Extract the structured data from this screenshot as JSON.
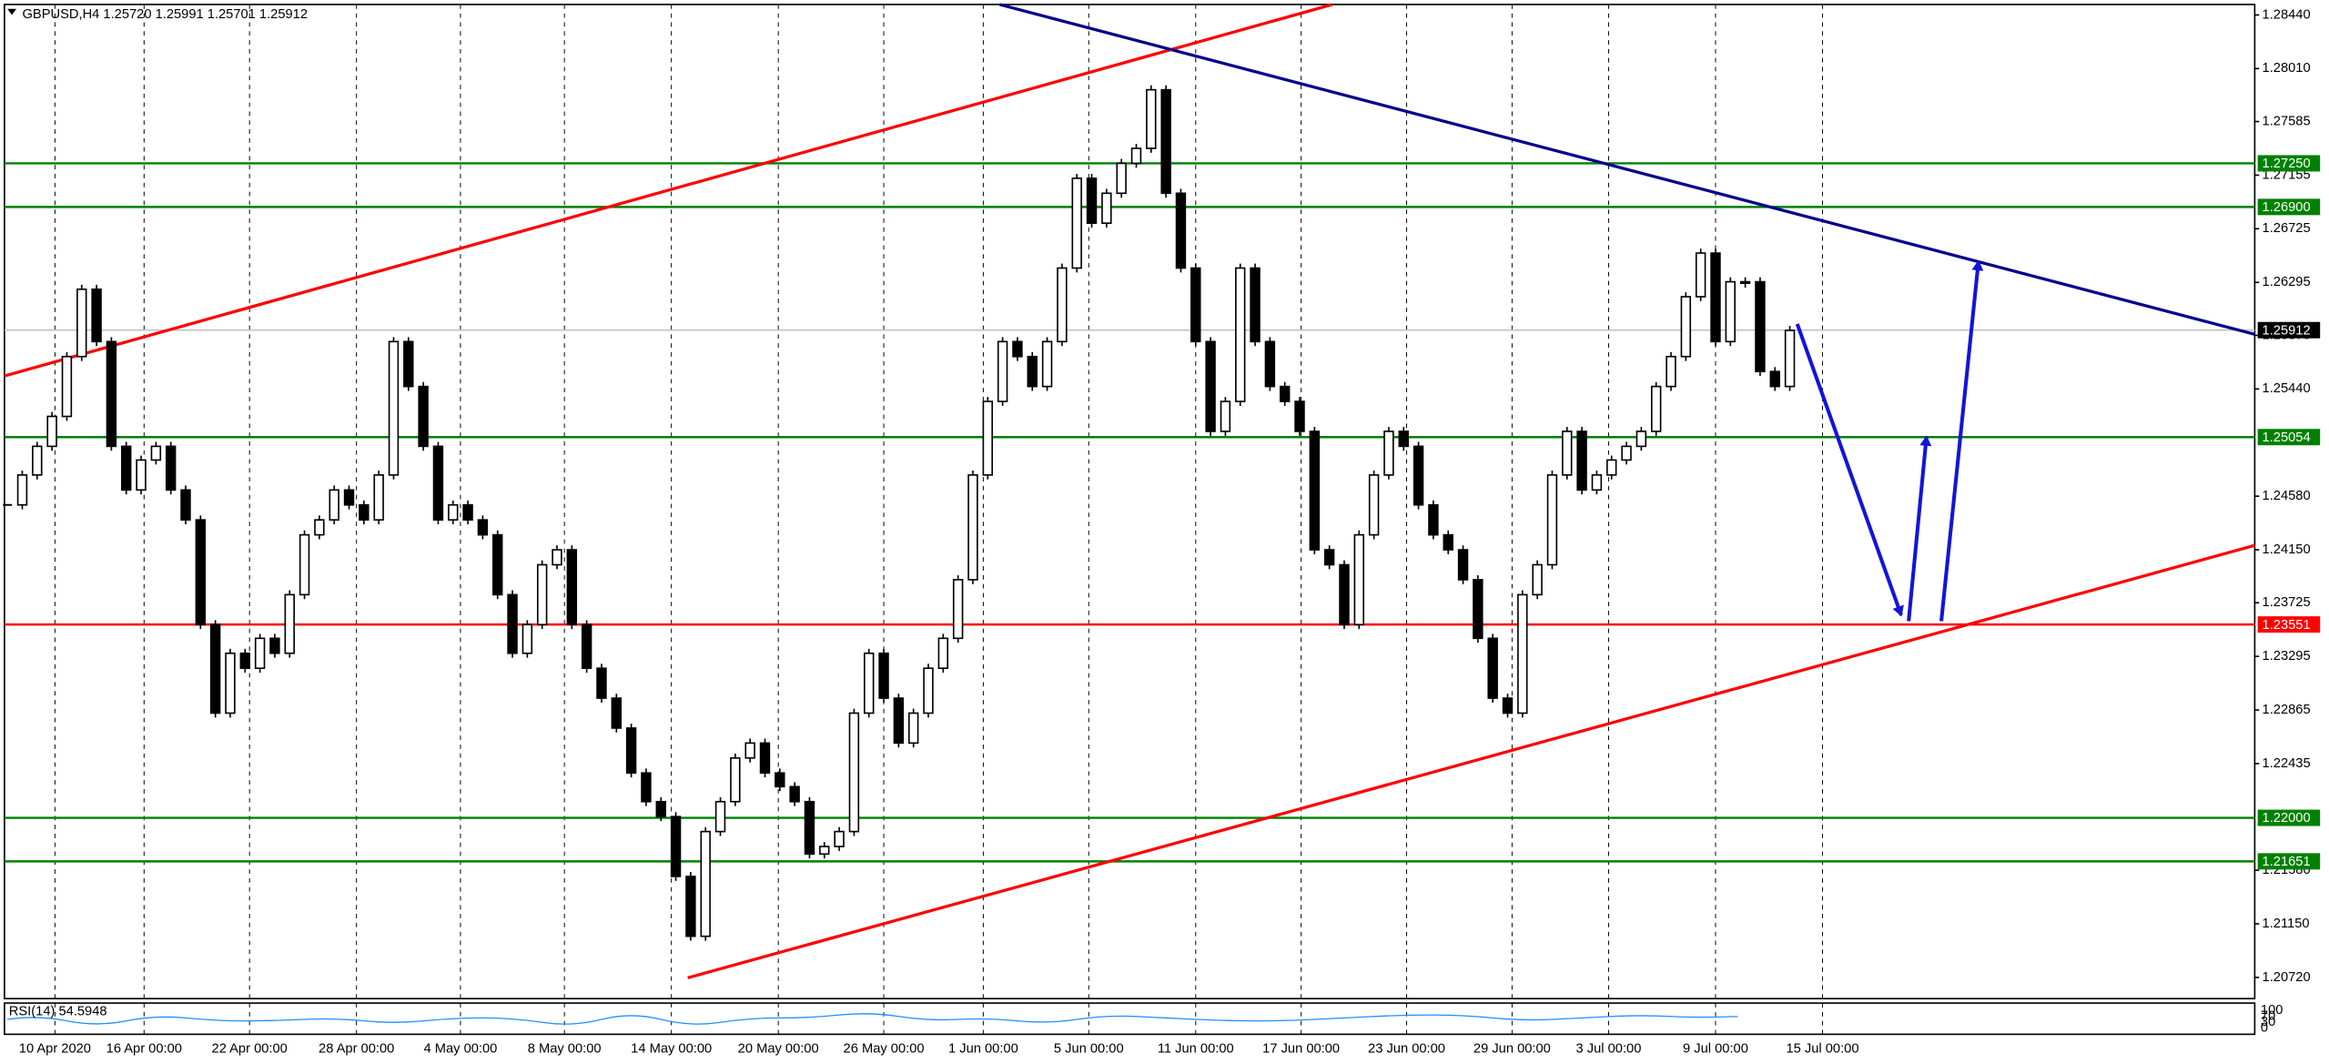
{
  "chart_data": {
    "type": "candlestick",
    "title": "GBPUSD,H4  1.25720 1.25991 1.25701 1.25912",
    "values": [
      1.2451,
      1.2475,
      1.2498,
      1.2522,
      1.257,
      1.2624,
      1.2582,
      1.2498,
      1.2463,
      1.2487,
      1.2498,
      1.2463,
      1.2439,
      1.2355,
      1.2284,
      1.2332,
      1.232,
      1.2344,
      1.2332,
      1.2379,
      1.2427,
      1.2439,
      1.2463,
      1.2451,
      1.2439,
      1.2475,
      1.2582,
      1.2546,
      1.2498,
      1.2439,
      1.2451,
      1.2439,
      1.2427,
      1.2379,
      1.2332,
      1.2355,
      1.2403,
      1.2415,
      1.2355,
      1.232,
      1.2296,
      1.2272,
      1.2236,
      1.2213,
      1.2201,
      1.2153,
      1.2105,
      1.2189,
      1.2213,
      1.2248,
      1.226,
      1.2236,
      1.2225,
      1.2213,
      1.2171,
      1.2177,
      1.2189,
      1.2284,
      1.2332,
      1.2296,
      1.226,
      1.2284,
      1.232,
      1.2344,
      1.2391,
      1.2475,
      1.2534,
      1.2582,
      1.257,
      1.2546,
      1.2582,
      1.2641,
      1.2713,
      1.2677,
      1.2701,
      1.2725,
      1.2737,
      1.2784,
      1.2701,
      1.2641,
      1.2582,
      1.251,
      1.2534,
      1.2641,
      1.2582,
      1.2546,
      1.2534,
      1.251,
      1.2415,
      1.2403,
      1.2355,
      1.2427,
      1.2475,
      1.251,
      1.2498,
      1.2451,
      1.2427,
      1.2415,
      1.2391,
      1.2344,
      1.2296,
      1.2284,
      1.2379,
      1.2403,
      1.2475,
      1.251,
      1.2463,
      1.2475,
      1.2487,
      1.2498,
      1.251,
      1.2546,
      1.257,
      1.2618,
      1.2653,
      1.2582,
      1.263,
      1.263,
      1.2558,
      1.2546,
      1.2591
    ],
    "xlim": [
      -0.5,
      151
    ],
    "ylim": [
      1.2055,
      1.2856
    ],
    "xticks": [
      {
        "value": 3.2,
        "label": "10 Apr 2020"
      },
      {
        "value": 9.2,
        "label": "16 Apr 00:00"
      },
      {
        "value": 16.3,
        "label": "22 Apr 00:00"
      },
      {
        "value": 23.5,
        "label": "28 Apr 00:00"
      },
      {
        "value": 30.5,
        "label": "4 May 00:00"
      },
      {
        "value": 37.5,
        "label": "8 May 00:00"
      },
      {
        "value": 44.7,
        "label": "14 May 00:00"
      },
      {
        "value": 51.9,
        "label": "20 May 00:00"
      },
      {
        "value": 59,
        "label": "26 May 00:00"
      },
      {
        "value": 65.7,
        "label": "1 Jun 00:00"
      },
      {
        "value": 72.8,
        "label": "5 Jun 00:00"
      },
      {
        "value": 80,
        "label": "11 Jun 00:00"
      },
      {
        "value": 87.1,
        "label": "17 Jun 00:00"
      },
      {
        "value": 94.2,
        "label": "23 Jun 00:00"
      },
      {
        "value": 101.3,
        "label": "29 Jun 00:00"
      },
      {
        "value": 107.8,
        "label": "3 Jul 00:00"
      },
      {
        "value": 115,
        "label": "9 Jul 00:00"
      },
      {
        "value": 122.2,
        "label": "15 Jul 00:00"
      }
    ],
    "yticks": [
      {
        "value": 1.2844,
        "label": "1.28440"
      },
      {
        "value": 1.2801,
        "label": "1.28010"
      },
      {
        "value": 1.27585,
        "label": "1.27585"
      },
      {
        "value": 1.27155,
        "label": "1.27155"
      },
      {
        "value": 1.26725,
        "label": "1.26725"
      },
      {
        "value": 1.26295,
        "label": "1.26295"
      },
      {
        "value": 1.2587,
        "label": "1.25870"
      },
      {
        "value": 1.2544,
        "label": "1.25440"
      },
      {
        "value": 1.2458,
        "label": "1.24580"
      },
      {
        "value": 1.2415,
        "label": "1.24150"
      },
      {
        "value": 1.23725,
        "label": "1.23725"
      },
      {
        "value": 1.23295,
        "label": "1.23295"
      },
      {
        "value": 1.22865,
        "label": "1.22865"
      },
      {
        "value": 1.22435,
        "label": "1.22435"
      },
      {
        "value": 1.2158,
        "label": "1.21580"
      },
      {
        "value": 1.2115,
        "label": "1.21150"
      },
      {
        "value": 1.2072,
        "label": "1.20720"
      }
    ],
    "levels": [
      {
        "value": 1.2725,
        "label": "1.27250",
        "color": "#008000"
      },
      {
        "value": 1.269,
        "label": "1.26900",
        "color": "#008000"
      },
      {
        "value": 1.25912,
        "label": "1.25912",
        "color": "#000000"
      },
      {
        "value": 1.25054,
        "label": "1.25054",
        "color": "#008000"
      },
      {
        "value": 1.23551,
        "label": "1.23551",
        "color": "#ff0000"
      },
      {
        "value": 1.22,
        "label": "1.22000",
        "color": "#008000"
      },
      {
        "value": 1.21651,
        "label": "1.21651",
        "color": "#008000"
      }
    ],
    "indicator_label": "RSI(14) 54.5948",
    "indicator_ticks": [
      "100",
      "70",
      "30",
      "0"
    ],
    "grid": true
  }
}
